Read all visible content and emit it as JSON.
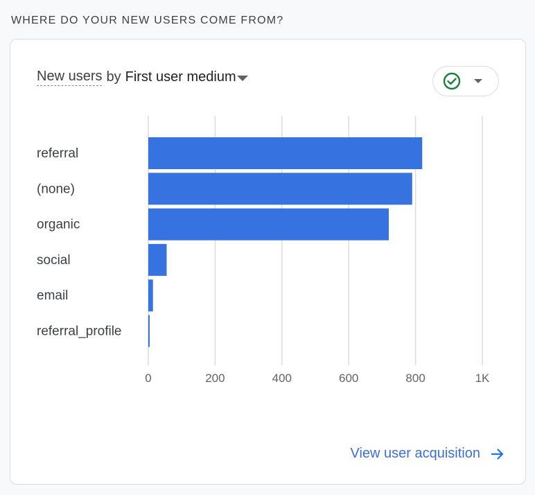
{
  "section": {
    "title": "WHERE DO YOUR NEW USERS COME FROM?"
  },
  "card": {
    "metric_label": "New users",
    "by_word": "by",
    "dimension_label": "First user medium",
    "status_icon": "check-circle-icon",
    "status_color": "#188038",
    "footer_link_label": "View user acquisition",
    "footer_icon": "arrow-right-icon",
    "accent_color": "#1a73e8"
  },
  "chart_data": {
    "type": "bar",
    "orientation": "horizontal",
    "categories": [
      "referral",
      "(none)",
      "organic",
      "social",
      "email",
      "referral_profile"
    ],
    "values": [
      820,
      790,
      720,
      55,
      14,
      3
    ],
    "x_ticks": [
      0,
      200,
      400,
      600,
      800,
      1000
    ],
    "x_tick_labels": [
      "0",
      "200",
      "400",
      "600",
      "800",
      "1K"
    ],
    "xlim": [
      0,
      1000
    ],
    "grid": true,
    "bar_color": "#3673e0"
  }
}
